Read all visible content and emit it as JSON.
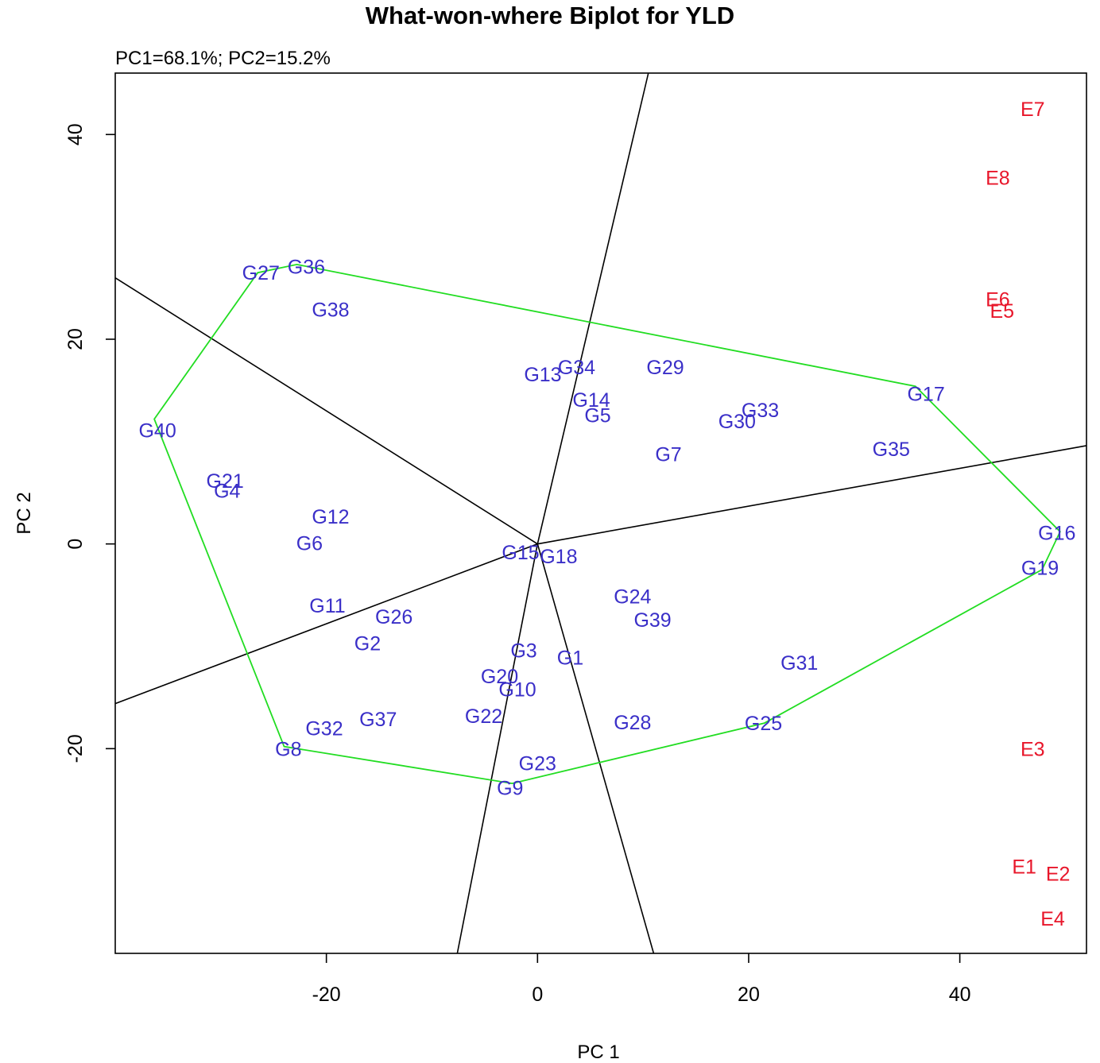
{
  "chart_data": {
    "type": "scatter",
    "title": "What-won-where Biplot for YLD",
    "subtitle": "PC1=68.1%; PC2=15.2%",
    "xlabel": "PC 1",
    "ylabel": "PC 2",
    "xlim": [
      -40,
      52
    ],
    "ylim": [
      -40,
      46
    ],
    "xticks": [
      -20,
      0,
      20,
      40
    ],
    "yticks": [
      -20,
      0,
      20,
      40
    ],
    "grid": false,
    "colors": {
      "genotype": "#3a2fc8",
      "environment": "#e8162a",
      "hull": "#22dd22",
      "sector": "#000000"
    },
    "genotypes": [
      {
        "label": "G1",
        "x": 3.1,
        "y": -11.1
      },
      {
        "label": "G2",
        "x": -16.1,
        "y": -9.7
      },
      {
        "label": "G3",
        "x": -1.3,
        "y": -10.4
      },
      {
        "label": "G4",
        "x": -29.4,
        "y": 5.2
      },
      {
        "label": "G5",
        "x": 5.7,
        "y": 12.6
      },
      {
        "label": "G6",
        "x": -21.6,
        "y": 0.1
      },
      {
        "label": "G7",
        "x": 12.4,
        "y": 8.8
      },
      {
        "label": "G8",
        "x": -23.6,
        "y": -20.0
      },
      {
        "label": "G9",
        "x": -2.6,
        "y": -23.8
      },
      {
        "label": "G10",
        "x": -1.9,
        "y": -14.2
      },
      {
        "label": "G11",
        "x": -19.9,
        "y": -6.0
      },
      {
        "label": "G12",
        "x": -19.6,
        "y": 2.7
      },
      {
        "label": "G13",
        "x": 0.5,
        "y": 16.6
      },
      {
        "label": "G14",
        "x": 5.1,
        "y": 14.1
      },
      {
        "label": "G15",
        "x": -1.6,
        "y": -0.8
      },
      {
        "label": "G16",
        "x": 49.2,
        "y": 1.1
      },
      {
        "label": "G17",
        "x": 36.8,
        "y": 14.7
      },
      {
        "label": "G18",
        "x": 2.0,
        "y": -1.2
      },
      {
        "label": "G19",
        "x": 47.6,
        "y": -2.3
      },
      {
        "label": "G20",
        "x": -3.6,
        "y": -12.9
      },
      {
        "label": "G21",
        "x": -29.6,
        "y": 6.2
      },
      {
        "label": "G22",
        "x": -5.1,
        "y": -16.8
      },
      {
        "label": "G23",
        "x": 0.0,
        "y": -21.4
      },
      {
        "label": "G24",
        "x": 9.0,
        "y": -5.1
      },
      {
        "label": "G25",
        "x": 21.4,
        "y": -17.5
      },
      {
        "label": "G26",
        "x": -13.6,
        "y": -7.1
      },
      {
        "label": "G27",
        "x": -26.2,
        "y": 26.5
      },
      {
        "label": "G28",
        "x": 9.0,
        "y": -17.4
      },
      {
        "label": "G29",
        "x": 12.1,
        "y": 17.3
      },
      {
        "label": "G30",
        "x": 18.9,
        "y": 12.0
      },
      {
        "label": "G31",
        "x": 24.8,
        "y": -11.6
      },
      {
        "label": "G32",
        "x": -20.2,
        "y": -18.0
      },
      {
        "label": "G33",
        "x": 21.1,
        "y": 13.1
      },
      {
        "label": "G34",
        "x": 3.7,
        "y": 17.3
      },
      {
        "label": "G35",
        "x": 33.5,
        "y": 9.3
      },
      {
        "label": "G36",
        "x": -21.9,
        "y": 27.1
      },
      {
        "label": "G37",
        "x": -15.1,
        "y": -17.1
      },
      {
        "label": "G38",
        "x": -19.6,
        "y": 22.9
      },
      {
        "label": "G39",
        "x": 10.9,
        "y": -7.4
      },
      {
        "label": "G40",
        "x": -36.0,
        "y": 11.1
      }
    ],
    "environments": [
      {
        "label": "E1",
        "x": 46.1,
        "y": -31.5
      },
      {
        "label": "E2",
        "x": 49.3,
        "y": -32.2
      },
      {
        "label": "E3",
        "x": 46.9,
        "y": -20.0
      },
      {
        "label": "E4",
        "x": 48.8,
        "y": -36.6
      },
      {
        "label": "E5",
        "x": 44.0,
        "y": 22.8
      },
      {
        "label": "E6",
        "x": 43.6,
        "y": 23.9
      },
      {
        "label": "E7",
        "x": 46.9,
        "y": 42.5
      },
      {
        "label": "E8",
        "x": 43.6,
        "y": 35.8
      }
    ],
    "hull": [
      {
        "x": -36.3,
        "y": 12.2
      },
      {
        "x": -26.5,
        "y": 26.5
      },
      {
        "x": -22.8,
        "y": 27.3
      },
      {
        "x": 35.8,
        "y": 15.4
      },
      {
        "x": 49.5,
        "y": 1.2
      },
      {
        "x": 47.8,
        "y": -2.5
      },
      {
        "x": 21.5,
        "y": -17.5
      },
      {
        "x": -2.4,
        "y": -23.4
      },
      {
        "x": -24.0,
        "y": -19.8
      }
    ],
    "sector_lines": [
      {
        "x": 10.5,
        "y": 46
      },
      {
        "x": 52,
        "y": 9.6
      },
      {
        "x": 11,
        "y": -40
      },
      {
        "x": -7.6,
        "y": -40
      },
      {
        "x": -40,
        "y": -15.6
      },
      {
        "x": -40,
        "y": 26
      }
    ]
  }
}
